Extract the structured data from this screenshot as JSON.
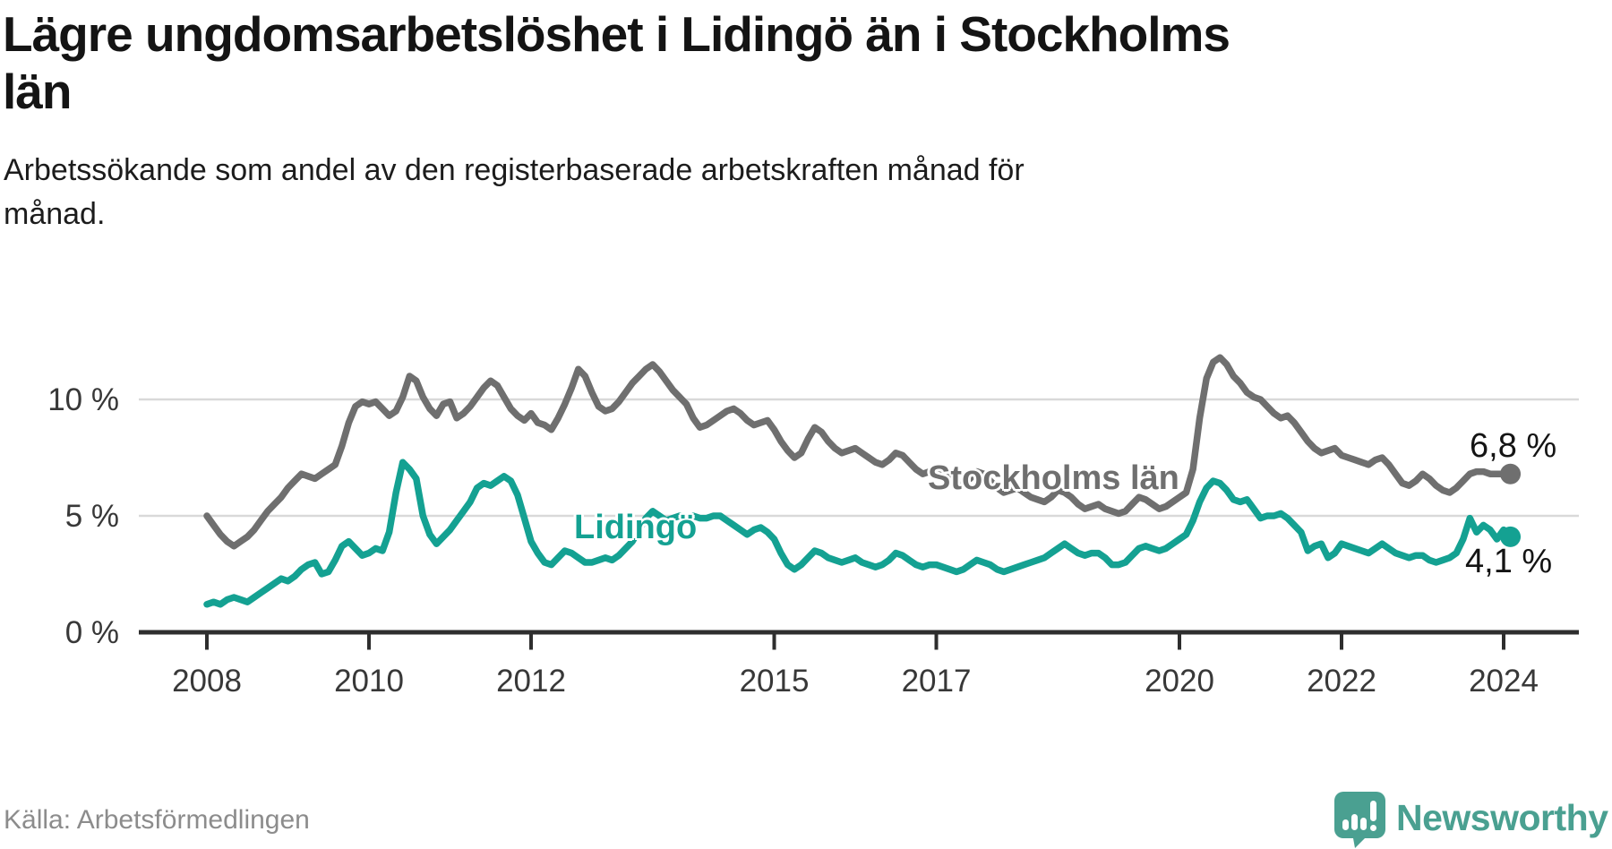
{
  "header": {
    "title_lines": [
      "Lägre ungdomsarbetslöshet i Lidingö än i Stockholms",
      "län"
    ],
    "subtitle_lines": [
      "Arbetssökande som andel av den registerbaserade arbetskraften månad för",
      "månad."
    ]
  },
  "footer": {
    "source": "Källa: Arbetsförmedlingen",
    "brand": "Newsworthy"
  },
  "colors": {
    "lidingo_line": "#14a192",
    "stockholm_line": "#6f6f6f",
    "grid": "#d9d9d9",
    "axis": "#2e2e2e",
    "brand_teal": "#4aa091"
  },
  "chart_data": {
    "type": "line",
    "unit": "%",
    "x_start_year": 2008,
    "x_start_month": 1,
    "x_step_months": 1,
    "x_tick_years": [
      2008,
      2010,
      2012,
      2015,
      2017,
      2020,
      2022,
      2024
    ],
    "x_tick_labels": [
      "2008",
      "2010",
      "2012",
      "2015",
      "2017",
      "2020",
      "2022",
      "2024"
    ],
    "y_ticks": [
      0,
      5,
      10
    ],
    "y_tick_labels": [
      "0 %",
      "5 %",
      "10 %"
    ],
    "ylim": [
      0,
      12.5
    ],
    "grid": "horizontal-only",
    "legend_position": "inline-labels",
    "series": [
      {
        "name": "Stockholms län",
        "color": "#6f6f6f",
        "end_label": "6,8 %",
        "end_value": 6.8,
        "values": [
          5.0,
          4.6,
          4.2,
          3.9,
          3.7,
          3.9,
          4.1,
          4.4,
          4.8,
          5.2,
          5.5,
          5.8,
          6.2,
          6.5,
          6.8,
          6.7,
          6.6,
          6.8,
          7.0,
          7.2,
          8.0,
          9.0,
          9.7,
          9.9,
          9.8,
          9.9,
          9.6,
          9.3,
          9.5,
          10.1,
          11.0,
          10.8,
          10.1,
          9.6,
          9.3,
          9.8,
          9.9,
          9.2,
          9.4,
          9.7,
          10.1,
          10.5,
          10.8,
          10.6,
          10.1,
          9.6,
          9.3,
          9.1,
          9.4,
          9.0,
          8.9,
          8.7,
          9.2,
          9.8,
          10.5,
          11.3,
          11.0,
          10.3,
          9.7,
          9.5,
          9.6,
          9.9,
          10.3,
          10.7,
          11.0,
          11.3,
          11.5,
          11.2,
          10.8,
          10.4,
          10.1,
          9.8,
          9.2,
          8.8,
          8.9,
          9.1,
          9.3,
          9.5,
          9.6,
          9.4,
          9.1,
          8.9,
          9.0,
          9.1,
          8.7,
          8.2,
          7.8,
          7.5,
          7.7,
          8.3,
          8.8,
          8.6,
          8.2,
          7.9,
          7.7,
          7.8,
          7.9,
          7.7,
          7.5,
          7.3,
          7.2,
          7.4,
          7.7,
          7.6,
          7.3,
          7.0,
          6.8,
          6.9,
          7.0,
          6.8,
          6.6,
          6.5,
          6.4,
          6.6,
          6.9,
          6.8,
          6.5,
          6.2,
          6.0,
          6.1,
          6.2,
          6.0,
          5.8,
          5.7,
          5.6,
          5.8,
          6.1,
          6.0,
          5.8,
          5.5,
          5.3,
          5.4,
          5.5,
          5.3,
          5.2,
          5.1,
          5.2,
          5.5,
          5.8,
          5.7,
          5.5,
          5.3,
          5.4,
          5.6,
          5.8,
          6.0,
          7.0,
          9.2,
          10.9,
          11.6,
          11.8,
          11.5,
          11.0,
          10.7,
          10.3,
          10.1,
          10.0,
          9.7,
          9.4,
          9.2,
          9.3,
          9.0,
          8.6,
          8.2,
          7.9,
          7.7,
          7.8,
          7.9,
          7.6,
          7.5,
          7.4,
          7.3,
          7.2,
          7.4,
          7.5,
          7.2,
          6.8,
          6.4,
          6.3,
          6.5,
          6.8,
          6.6,
          6.3,
          6.1,
          6.0,
          6.2,
          6.5,
          6.8,
          6.9,
          6.9,
          6.8,
          6.8,
          6.8,
          6.8
        ]
      },
      {
        "name": "Lidingö",
        "color": "#14a192",
        "end_label": "4,1 %",
        "end_value": 4.1,
        "values": [
          1.2,
          1.3,
          1.2,
          1.4,
          1.5,
          1.4,
          1.3,
          1.5,
          1.7,
          1.9,
          2.1,
          2.3,
          2.2,
          2.4,
          2.7,
          2.9,
          3.0,
          2.5,
          2.6,
          3.1,
          3.7,
          3.9,
          3.6,
          3.3,
          3.4,
          3.6,
          3.5,
          4.3,
          6.0,
          7.3,
          7.0,
          6.6,
          5.0,
          4.2,
          3.8,
          4.1,
          4.4,
          4.8,
          5.2,
          5.6,
          6.2,
          6.4,
          6.3,
          6.5,
          6.7,
          6.5,
          5.9,
          4.9,
          3.9,
          3.4,
          3.0,
          2.9,
          3.2,
          3.5,
          3.4,
          3.2,
          3.0,
          3.0,
          3.1,
          3.2,
          3.1,
          3.3,
          3.6,
          3.9,
          4.4,
          4.9,
          5.2,
          5.0,
          4.8,
          4.9,
          5.0,
          4.9,
          5.0,
          4.9,
          4.9,
          5.0,
          5.0,
          4.8,
          4.6,
          4.4,
          4.2,
          4.4,
          4.5,
          4.3,
          4.0,
          3.4,
          2.9,
          2.7,
          2.9,
          3.2,
          3.5,
          3.4,
          3.2,
          3.1,
          3.0,
          3.1,
          3.2,
          3.0,
          2.9,
          2.8,
          2.9,
          3.1,
          3.4,
          3.3,
          3.1,
          2.9,
          2.8,
          2.9,
          2.9,
          2.8,
          2.7,
          2.6,
          2.7,
          2.9,
          3.1,
          3.0,
          2.9,
          2.7,
          2.6,
          2.7,
          2.8,
          2.9,
          3.0,
          3.1,
          3.2,
          3.4,
          3.6,
          3.8,
          3.6,
          3.4,
          3.3,
          3.4,
          3.4,
          3.2,
          2.9,
          2.9,
          3.0,
          3.3,
          3.6,
          3.7,
          3.6,
          3.5,
          3.6,
          3.8,
          4.0,
          4.2,
          4.8,
          5.6,
          6.2,
          6.5,
          6.4,
          6.1,
          5.7,
          5.6,
          5.7,
          5.3,
          4.9,
          5.0,
          5.0,
          5.1,
          4.9,
          4.6,
          4.3,
          3.5,
          3.7,
          3.8,
          3.2,
          3.4,
          3.8,
          3.7,
          3.6,
          3.5,
          3.4,
          3.6,
          3.8,
          3.6,
          3.4,
          3.3,
          3.2,
          3.3,
          3.3,
          3.1,
          3.0,
          3.1,
          3.2,
          3.4,
          4.0,
          4.9,
          4.3,
          4.6,
          4.4,
          4.0,
          4.4,
          4.1
        ]
      }
    ]
  }
}
